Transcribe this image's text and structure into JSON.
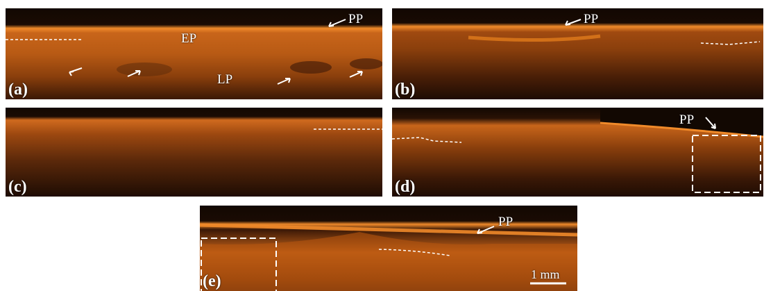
{
  "figure": {
    "panels": [
      {
        "letter": "(a)",
        "labels": [
          "PP",
          "EP",
          "LP"
        ]
      },
      {
        "letter": "(b)",
        "labels": [
          "PP"
        ]
      },
      {
        "letter": "(c)",
        "labels": []
      },
      {
        "letter": "(d)",
        "labels": [
          "PP"
        ]
      },
      {
        "letter": "(e)",
        "labels": [
          "PP"
        ]
      }
    ],
    "scale_bar": "1 mm",
    "colors": {
      "tissue_bright": "#e07a1c",
      "tissue_mid": "#b5550f",
      "tissue_dark": "#2a1205",
      "background": "#ffffff",
      "annotation": "#ffffff"
    }
  }
}
